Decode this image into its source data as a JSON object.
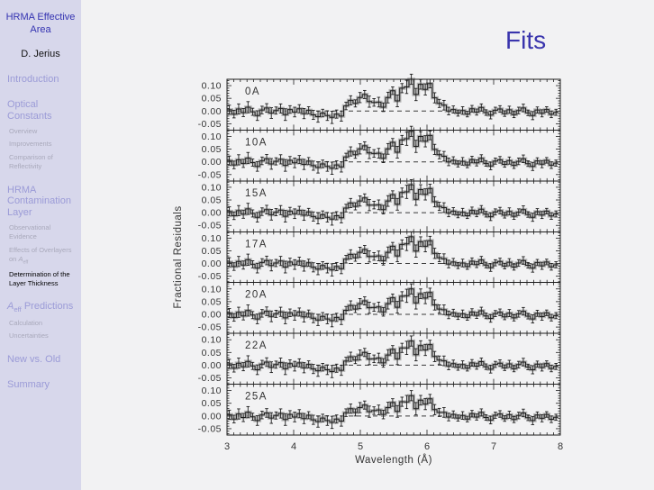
{
  "sidebar": {
    "title": "HRMA Effective Area",
    "author": "D. Jerius",
    "items": [
      {
        "label": "Introduction",
        "level": 1
      },
      {
        "label": "Optical Constants",
        "level": 1
      },
      {
        "label": "Overview",
        "level": 2
      },
      {
        "label": "Improvements",
        "level": 2
      },
      {
        "label": "Comparison of Reflectivity",
        "level": 2
      },
      {
        "label": "HRMA Contamination Layer",
        "level": 1
      },
      {
        "label": "Observational Evidence",
        "level": 2
      },
      {
        "label": "Effects of Overlayers on Aeff",
        "level": 2,
        "pre": "Effects of Overlayers on ",
        "math": "A",
        "sub": "eff",
        "post": ""
      },
      {
        "label": "Determination of the Layer Thickness",
        "level": 2,
        "active": true
      },
      {
        "label": "Aeff Predictions",
        "level": 1,
        "pre": "",
        "math": "A",
        "sub": "eff",
        "post": " Predictions"
      },
      {
        "label": "Calculation",
        "level": 2
      },
      {
        "label": "Uncertainties",
        "level": 2
      },
      {
        "label": "New vs. Old",
        "level": 1
      },
      {
        "label": "Summary",
        "level": 1
      }
    ]
  },
  "header": {
    "title": "Fits"
  },
  "chart_data": {
    "type": "line",
    "style": "7 stacked residual panels; stepped histogram with error bars and gray model halo; dashed zero line per panel",
    "title": "Fits",
    "xlabel": "Wavelength (Å)",
    "ylabel": "Fractional Residuals",
    "xlim": [
      3,
      8
    ],
    "xticks": [
      3,
      4,
      5,
      6,
      7,
      8
    ],
    "panel_ylim": [
      -0.075,
      0.125
    ],
    "yticks": [
      0.1,
      0.05,
      0.0,
      -0.05
    ],
    "ytick_labels": [
      "0.10",
      "0.05",
      "0.00",
      "-0.05"
    ],
    "zero_line_dashed": true,
    "x_start": 3.035,
    "x_step": 0.07,
    "value_unit": 0.001,
    "errors_milli": [
      18,
      15,
      20,
      16,
      22,
      14,
      19,
      15,
      17,
      21,
      14,
      18,
      23,
      15,
      19,
      16,
      20,
      14,
      18,
      22,
      15,
      19,
      24,
      16,
      20,
      15,
      18,
      14,
      20,
      16,
      22,
      15,
      19,
      17,
      21,
      15,
      23,
      18,
      26,
      20,
      24,
      19,
      22,
      17,
      20,
      16,
      19,
      15,
      14,
      12,
      15,
      11,
      13,
      12,
      14,
      11,
      15,
      12,
      13,
      11,
      14,
      12,
      13,
      15,
      11,
      16,
      12,
      14,
      11,
      13,
      12
    ],
    "series": [
      {
        "name": "0A",
        "values_milli": [
          5,
          -12,
          8,
          -6,
          15,
          -3,
          -18,
          4,
          12,
          -8,
          2,
          10,
          -14,
          6,
          -4,
          9,
          -10,
          3,
          -15,
          -22,
          -8,
          -18,
          -25,
          -12,
          -20,
          20,
          42,
          30,
          53,
          65,
          37,
          34,
          35,
          15,
          53,
          80,
          40,
          90,
          95,
          125,
          65,
          105,
          85,
          108,
          52,
          30,
          23,
          0,
          6,
          -8,
          2,
          -12,
          9,
          -4,
          14,
          -6,
          -16,
          3,
          8,
          -10,
          5,
          -14,
          2,
          12,
          -7,
          -18,
          4,
          -9,
          6,
          -13,
          -5
        ]
      },
      {
        "name": "10A",
        "values_milli": [
          5,
          -12,
          8,
          -6,
          15,
          -3,
          -18,
          4,
          12,
          -8,
          2,
          10,
          -14,
          6,
          -4,
          9,
          -10,
          3,
          -15,
          -22,
          -8,
          -18,
          -25,
          -12,
          -20,
          19,
          41,
          28,
          51,
          63,
          35,
          33,
          34,
          14,
          51,
          77,
          38,
          86,
          91,
          120,
          61,
          100,
          81,
          104,
          49,
          28,
          22,
          0,
          6,
          -8,
          2,
          -12,
          9,
          -4,
          14,
          -6,
          -16,
          3,
          8,
          -10,
          5,
          -14,
          2,
          12,
          -7,
          -18,
          4,
          -9,
          6,
          -13,
          -5
        ]
      },
      {
        "name": "15A",
        "values_milli": [
          5,
          -12,
          8,
          -6,
          15,
          -3,
          -18,
          4,
          12,
          -8,
          2,
          10,
          -14,
          6,
          -4,
          9,
          -10,
          3,
          -15,
          -22,
          -8,
          -18,
          -25,
          -12,
          -20,
          18,
          38,
          25,
          46,
          58,
          30,
          30,
          31,
          12,
          46,
          71,
          33,
          79,
          82,
          110,
          53,
          91,
          72,
          95,
          43,
          25,
          20,
          -1,
          6,
          -8,
          2,
          -12,
          9,
          -4,
          14,
          -6,
          -16,
          3,
          8,
          -10,
          5,
          -14,
          2,
          12,
          -7,
          -18,
          4,
          -9,
          6,
          -13,
          -5
        ]
      },
      {
        "name": "17A",
        "values_milli": [
          5,
          -12,
          8,
          -6,
          15,
          -3,
          -18,
          4,
          12,
          -8,
          2,
          10,
          -14,
          6,
          -4,
          9,
          -10,
          3,
          -15,
          -22,
          -8,
          -18,
          -25,
          -12,
          -20,
          17,
          36,
          23,
          44,
          55,
          28,
          28,
          30,
          11,
          44,
          68,
          30,
          75,
          77,
          105,
          49,
          86,
          68,
          90,
          40,
          23,
          19,
          -2,
          6,
          -8,
          2,
          -12,
          9,
          -4,
          14,
          -6,
          -16,
          3,
          8,
          -10,
          5,
          -14,
          2,
          12,
          -7,
          -18,
          4,
          -9,
          6,
          -13,
          -5
        ]
      },
      {
        "name": "20A",
        "values_milli": [
          5,
          -12,
          8,
          -6,
          15,
          -3,
          -18,
          4,
          12,
          -8,
          2,
          10,
          -14,
          6,
          -4,
          9,
          -10,
          3,
          -15,
          -22,
          -8,
          -18,
          -25,
          -12,
          -20,
          16,
          35,
          21,
          42,
          53,
          26,
          27,
          29,
          10,
          42,
          65,
          28,
          71,
          73,
          100,
          45,
          81,
          64,
          86,
          37,
          21,
          18,
          -2,
          6,
          -8,
          2,
          -12,
          9,
          -4,
          14,
          -6,
          -16,
          3,
          8,
          -10,
          5,
          -14,
          2,
          12,
          -7,
          -18,
          4,
          -9,
          6,
          -13,
          -5
        ]
      },
      {
        "name": "22A",
        "values_milli": [
          5,
          -12,
          8,
          -6,
          15,
          -3,
          -18,
          4,
          12,
          -8,
          2,
          10,
          -14,
          6,
          -4,
          9,
          -10,
          3,
          -15,
          -22,
          -8,
          -18,
          -25,
          -12,
          -20,
          16,
          33,
          20,
          40,
          50,
          24,
          25,
          28,
          9,
          40,
          62,
          25,
          68,
          68,
          95,
          41,
          77,
          60,
          81,
          34,
          20,
          17,
          -3,
          6,
          -8,
          2,
          -12,
          9,
          -4,
          14,
          -6,
          -16,
          3,
          8,
          -10,
          5,
          -14,
          2,
          12,
          -7,
          -18,
          4,
          -9,
          6,
          -13,
          -5
        ]
      },
      {
        "name": "25A",
        "values_milli": [
          5,
          -12,
          8,
          -6,
          15,
          -3,
          -18,
          4,
          12,
          -8,
          2,
          10,
          -14,
          6,
          -4,
          9,
          -10,
          3,
          -15,
          -22,
          -8,
          -18,
          -25,
          -12,
          -20,
          13,
          29,
          14,
          33,
          43,
          17,
          21,
          24,
          6,
          33,
          53,
          18,
          56,
          55,
          80,
          29,
          62,
          47,
          68,
          25,
          14,
          14,
          -4,
          6,
          -8,
          2,
          -12,
          9,
          -4,
          14,
          -6,
          -16,
          3,
          8,
          -10,
          5,
          -14,
          2,
          12,
          -7,
          -18,
          4,
          -9,
          6,
          -13,
          -5
        ]
      }
    ]
  }
}
